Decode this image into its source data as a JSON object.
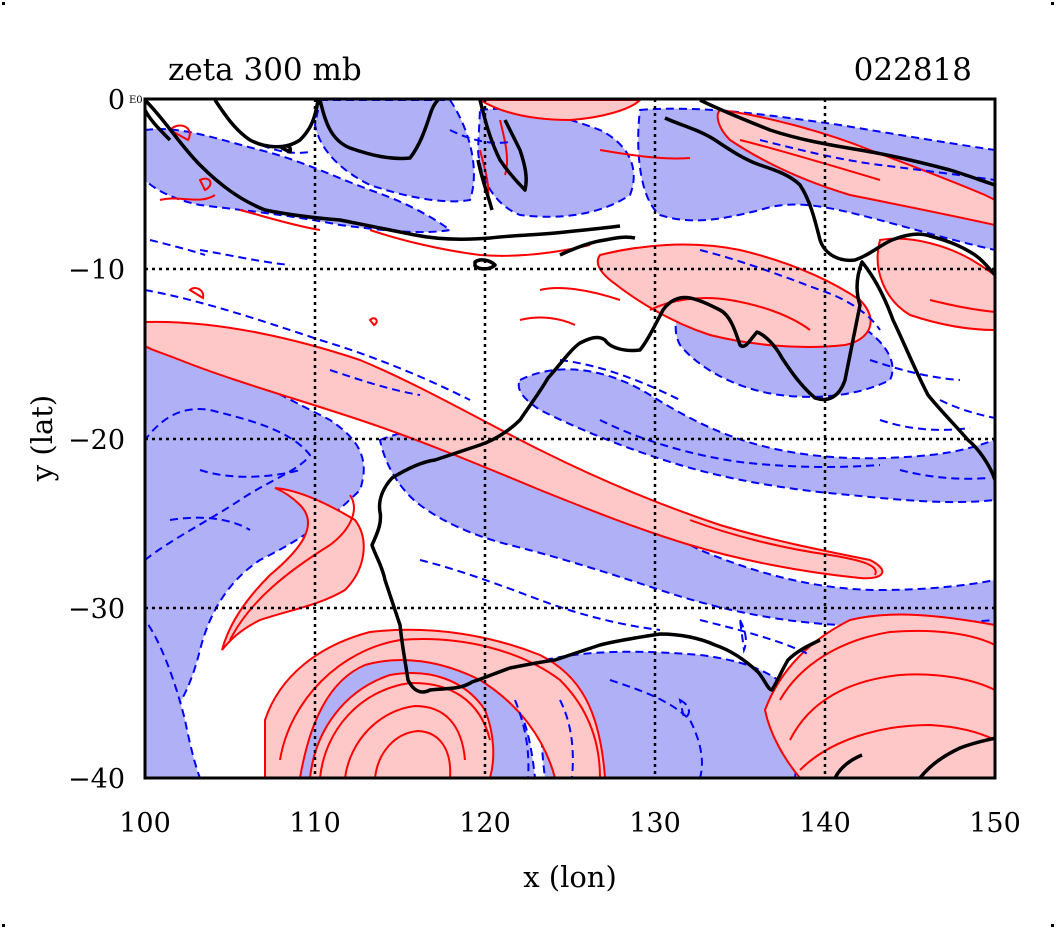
{
  "header": {
    "title": "zeta 300 mb",
    "date_code": "022818"
  },
  "axes": {
    "xlabel": "x (lon)",
    "ylabel": "y (lat)",
    "xlim": [
      100,
      150
    ],
    "ylim": [
      -40,
      0
    ],
    "xticks": [
      "100",
      "110",
      "120",
      "130",
      "140",
      "150"
    ],
    "yticks": [
      "0",
      "−10",
      "−20",
      "−30",
      "−40"
    ],
    "corner_mark": "E0",
    "grid": true
  },
  "colors": {
    "positive_line": "#ff0000",
    "positive_fill": "#ffc8c8",
    "negative_line": "#0000ff",
    "negative_fill": "#b0b0f6",
    "coast": "#000000",
    "grid": "#000000"
  },
  "map_features": {
    "coastline": "Australia and Maritime Continent",
    "positive_contours": "solid red, light red shading",
    "negative_contours": "dashed blue, light blue shading"
  }
}
